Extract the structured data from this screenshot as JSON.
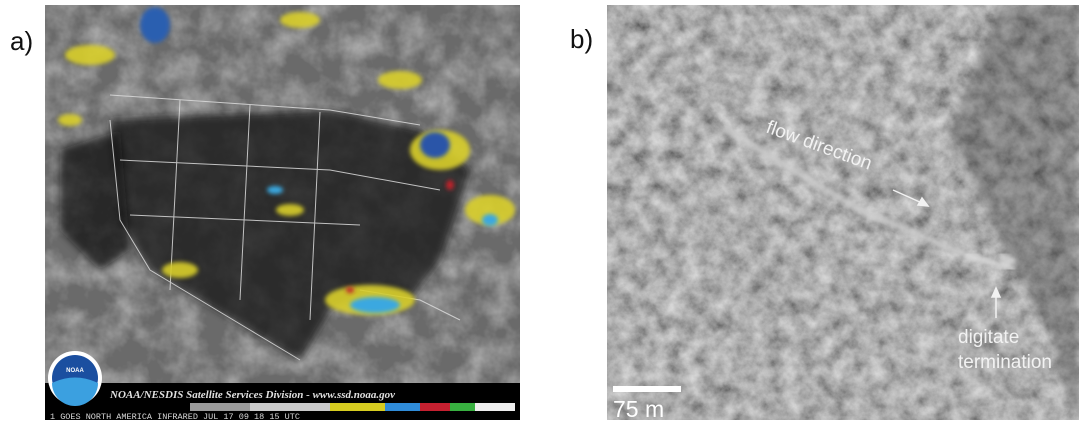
{
  "panels": [
    {
      "label": "a)",
      "credit": "NOAA/NESDIS Satellite Services Division - www.ssd.noaa.gov",
      "footer": "1  GOES NORTH AMERICA INFRARED JUL 17 09 18 15 UTC",
      "logo": "NOAA"
    },
    {
      "label": "b)",
      "annotations": [
        "flow direction",
        "digitate",
        "termination"
      ],
      "scale_bar": "75 m"
    }
  ]
}
